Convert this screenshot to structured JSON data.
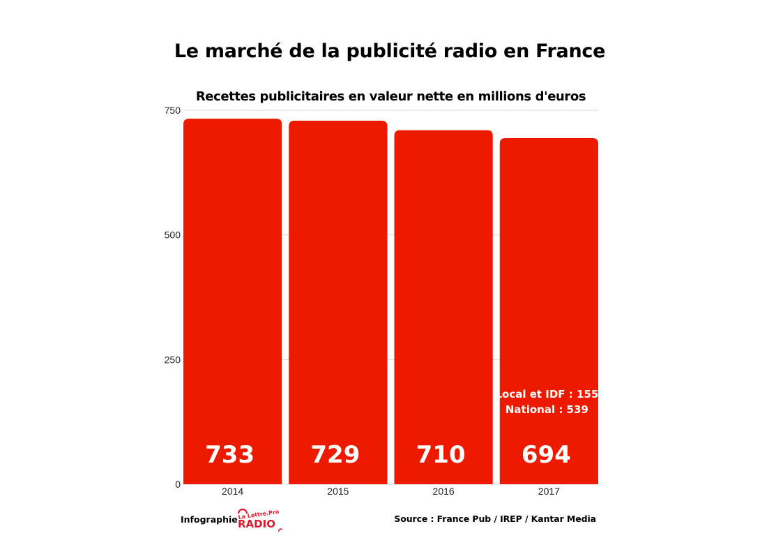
{
  "header": {
    "title": "Le marché de la publicité radio en France"
  },
  "chart_data": {
    "type": "bar",
    "title": "Recettes publicitaires en valeur nette en millions d'euros",
    "xlabel": "",
    "ylabel": "",
    "categories": [
      "2014",
      "2015",
      "2016",
      "2017"
    ],
    "values": [
      733,
      729,
      710,
      694
    ],
    "value_labels": [
      "733",
      "729",
      "710",
      "694"
    ],
    "ylim": [
      0,
      750
    ],
    "yticks": [
      0,
      250,
      500,
      750
    ],
    "ytick_labels": [
      "0",
      "250",
      "500",
      "750"
    ],
    "grid": true,
    "bar_color": "#EE1A00",
    "annotations": [
      {
        "category": "2017",
        "lines": [
          "Local et IDF : 155",
          "National : 539"
        ]
      }
    ]
  },
  "footer": {
    "credit": "Infographie",
    "logo_text": [
      "La Lettre Pro",
      "RADIO"
    ],
    "source": "Source : France Pub / IREP / Kantar Media"
  }
}
